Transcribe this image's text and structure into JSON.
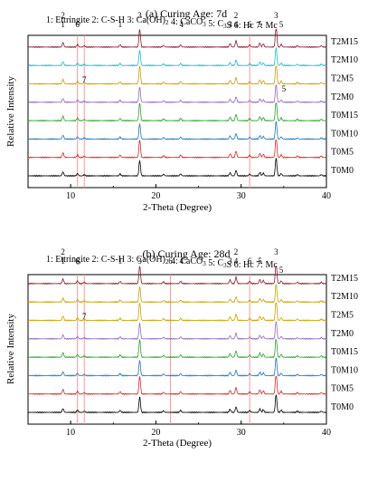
{
  "chart_data": [
    {
      "type": "line",
      "title": "(a) Curing Age: 7d",
      "xlabel": "2-Theta (Degree)",
      "ylabel": "Relative Intensity",
      "xlim": [
        5,
        40
      ],
      "xticks": [
        "10",
        "20",
        "30",
        "40"
      ],
      "legend_text": "1: Ettringite  2: C-S-H  3: Ca(OH)",
      "legend_text_b": "  4: CaCO",
      "legend_text_c": "  5: C",
      "legend_text_d": "S  6: Hc  7: Mc",
      "sub2": "2",
      "sub3": "3",
      "ref_lines_x": [
        10.8,
        11.6,
        31.0
      ],
      "series": [
        {
          "name": "T2M15",
          "color": "#8b1a2f"
        },
        {
          "name": "T2M10",
          "color": "#17becf"
        },
        {
          "name": "T2M5",
          "color": "#c9a000"
        },
        {
          "name": "T2M0",
          "color": "#9467bd"
        },
        {
          "name": "T0M15",
          "color": "#2ca02c"
        },
        {
          "name": "T0M10",
          "color": "#1f77b4"
        },
        {
          "name": "T0M5",
          "color": "#d62728"
        },
        {
          "name": "T0M0",
          "color": "#000000"
        }
      ],
      "annotations": [
        {
          "text": "2",
          "x": 9.1,
          "row": 0,
          "level": 2
        },
        {
          "text": "1",
          "x": 9.1,
          "row": 0,
          "level": 1
        },
        {
          "text": "6",
          "x": 10.8,
          "row": 0,
          "level": 1
        },
        {
          "text": "1",
          "x": 15.8,
          "row": 0,
          "level": 1
        },
        {
          "text": "3",
          "x": 18.1,
          "row": 0,
          "level": 2
        },
        {
          "text": "4",
          "x": 23.0,
          "row": 0,
          "level": 1
        },
        {
          "text": "3",
          "x": 28.7,
          "row": 0,
          "level": 1
        },
        {
          "text": "2",
          "x": 29.4,
          "row": 0,
          "level": 2
        },
        {
          "text": "4",
          "x": 29.4,
          "row": 0,
          "level": 1
        },
        {
          "text": "6",
          "x": 31.0,
          "row": 0,
          "level": 1
        },
        {
          "text": "5",
          "x": 32.2,
          "row": 0,
          "level": 1
        },
        {
          "text": "3",
          "x": 34.1,
          "row": 0,
          "level": 2
        },
        {
          "text": "5",
          "x": 34.7,
          "row": 0,
          "level": 1
        },
        {
          "text": "7",
          "x": 11.6,
          "row": 3,
          "level": 1
        },
        {
          "text": "5",
          "x": 35.0,
          "row": 3,
          "level": 0
        }
      ]
    },
    {
      "type": "line",
      "title": "(b) Curing Age: 28d",
      "xlabel": "2-Theta (Degree)",
      "ylabel": "Relative Intensity",
      "xlim": [
        5,
        40
      ],
      "xticks": [
        "10",
        "20",
        "30",
        "40"
      ],
      "legend_text": "1: Ettringite  2: C-S-H  3: Ca(OH)",
      "legend_text_b": "  4: CaCO",
      "legend_text_c": "  5: C",
      "legend_text_d": "S  6: Hc  7: Mc",
      "sub2": "2",
      "sub3": "3",
      "ref_lines_x": [
        10.8,
        11.6,
        21.7,
        31.0
      ],
      "series": [
        {
          "name": "T2M15",
          "color": "#8b1a2f"
        },
        {
          "name": "T2M10",
          "color": "#c9a000"
        },
        {
          "name": "T2M5",
          "color": "#c9a000"
        },
        {
          "name": "T2M0",
          "color": "#9467bd"
        },
        {
          "name": "T0M15",
          "color": "#2ca02c"
        },
        {
          "name": "T0M10",
          "color": "#1f77b4"
        },
        {
          "name": "T0M5",
          "color": "#d62728"
        },
        {
          "name": "T0M0",
          "color": "#000000"
        }
      ],
      "annotations": [
        {
          "text": "2",
          "x": 9.1,
          "row": 0,
          "level": 2
        },
        {
          "text": "1",
          "x": 9.1,
          "row": 0,
          "level": 1
        },
        {
          "text": "6",
          "x": 10.8,
          "row": 0,
          "level": 1
        },
        {
          "text": "1",
          "x": 15.8,
          "row": 0,
          "level": 1
        },
        {
          "text": "3",
          "x": 18.1,
          "row": 0,
          "level": 1
        },
        {
          "text": "6",
          "x": 21.7,
          "row": 0,
          "level": 1
        },
        {
          "text": "4",
          "x": 23.0,
          "row": 0,
          "level": 1
        },
        {
          "text": "3",
          "x": 28.7,
          "row": 0,
          "level": 1
        },
        {
          "text": "2",
          "x": 29.4,
          "row": 0,
          "level": 2
        },
        {
          "text": "4",
          "x": 29.4,
          "row": 0,
          "level": 1
        },
        {
          "text": "6",
          "x": 31.0,
          "row": 0,
          "level": 1
        },
        {
          "text": "5",
          "x": 32.2,
          "row": 0,
          "level": 1
        },
        {
          "text": "3",
          "x": 34.1,
          "row": 0,
          "level": 2
        },
        {
          "text": "5",
          "x": 34.7,
          "row": 0,
          "level": 0
        },
        {
          "text": "7",
          "x": 11.6,
          "row": 3,
          "level": 1
        }
      ]
    }
  ]
}
